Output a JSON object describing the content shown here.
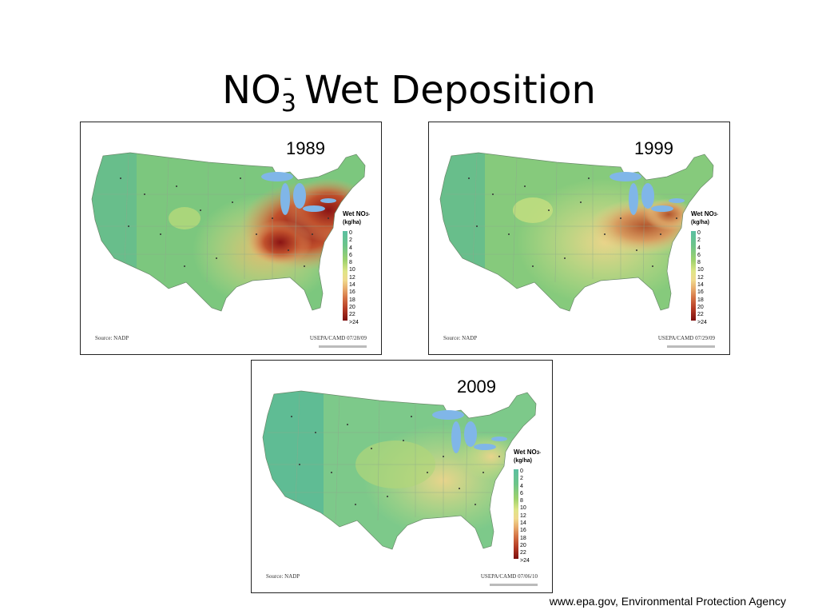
{
  "title": {
    "main": "NO",
    "sub": "3",
    "sup": "-",
    "rest": " Wet Deposition"
  },
  "panels": [
    {
      "year": "1989",
      "source": "Source: NADP",
      "credit": "USEPA/CAMD 07/28/09"
    },
    {
      "year": "1999",
      "source": "Source: NADP",
      "credit": "USEPA/CAMD 07/29/09"
    },
    {
      "year": "2009",
      "source": "Source: NADP",
      "credit": "USEPA/CAMD 07/06/10"
    }
  ],
  "legend": {
    "title": "Wet NO",
    "title_sub": "3",
    "title_sup": "-",
    "units": "(kg/ha)",
    "ticks": [
      "0",
      "2",
      "4",
      "6",
      "8",
      "10",
      "12",
      "14",
      "16",
      "18",
      "20",
      "22",
      ">24"
    ]
  },
  "colors": {
    "low": "#5bbfa1",
    "mid_low": "#9fd26c",
    "mid": "#f0d98d",
    "high": "#d47144",
    "max": "#7d0f0f",
    "lakes": "#80b6e8"
  },
  "footer": "www.epa.gov, Environmental Protection Agency"
}
